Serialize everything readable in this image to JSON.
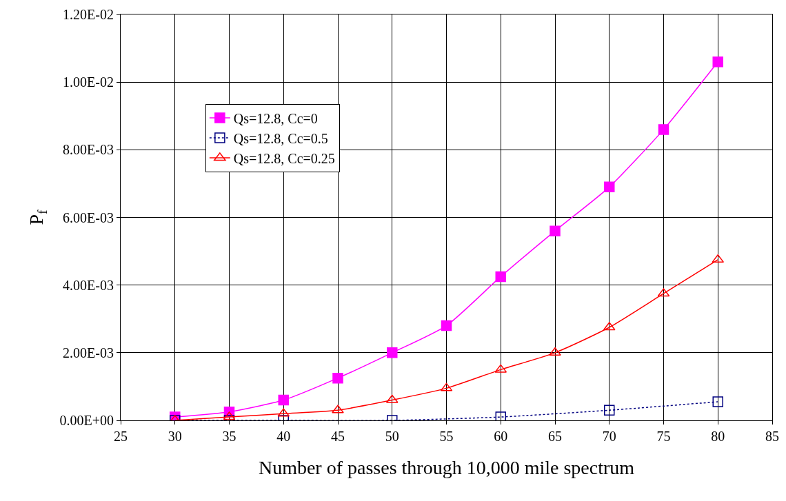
{
  "chart_data": {
    "type": "line",
    "xlabel": "Number of passes through 10,000 mile spectrum",
    "ylabel": "P$_{f}$",
    "xlim": [
      25,
      85
    ],
    "xticks": [
      25,
      30,
      35,
      40,
      45,
      50,
      55,
      60,
      65,
      70,
      75,
      80,
      85
    ],
    "ylim": [
      0,
      0.012
    ],
    "yticks": [
      {
        "value": 0,
        "label": "0.00E+00"
      },
      {
        "value": 0.002,
        "label": "2.00E-03"
      },
      {
        "value": 0.004,
        "label": "4.00E-03"
      },
      {
        "value": 0.006,
        "label": "6.00E-03"
      },
      {
        "value": 0.008,
        "label": "8.00E-03"
      },
      {
        "value": 0.01,
        "label": "1.00E-02"
      },
      {
        "value": 0.012,
        "label": "1.20E-02"
      }
    ],
    "grid": true,
    "legend": "top left",
    "series": [
      {
        "name": "Qs=12.8, Cc=0",
        "color": "#ff00ff",
        "marker": "square",
        "line_style": "solid",
        "x": [
          30,
          35,
          40,
          45,
          50,
          55,
          60,
          65,
          70,
          75,
          80
        ],
        "values": [
          0.0001,
          0.00025,
          0.0006,
          0.00125,
          0.002,
          0.0028,
          0.00425,
          0.0056,
          0.0069,
          0.0086,
          0.0106
        ]
      },
      {
        "name": "Qs=12.8, Cc=0.5",
        "color": "#000080",
        "marker": "square",
        "line_style": "dotted",
        "x": [
          30,
          35,
          40,
          50,
          60,
          70,
          80
        ],
        "values": [
          0.0,
          0.0,
          0.0,
          0.0,
          0.0001,
          0.0003,
          0.00055
        ]
      },
      {
        "name": "Qs=12.8, Cc=0.25",
        "color": "#ff0000",
        "marker": "triangle",
        "line_style": "solid",
        "x": [
          30,
          35,
          40,
          45,
          50,
          55,
          60,
          65,
          70,
          75,
          80
        ],
        "values": [
          0.0,
          0.0001,
          0.0002,
          0.0003,
          0.0006,
          0.00095,
          0.0015,
          0.002,
          0.00275,
          0.00375,
          0.00475
        ]
      }
    ]
  }
}
